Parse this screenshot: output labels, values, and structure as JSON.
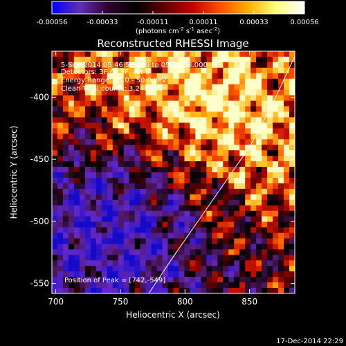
{
  "chart_data": {
    "type": "heatmap",
    "title": "Reconstructed RHESSI Image",
    "xlabel": "Heliocentric X (arcsec)",
    "ylabel": "Heliocentric Y (arcsec)",
    "xlim": [
      697,
      885
    ],
    "ylim": [
      -558,
      -363
    ],
    "x_ticks": [
      700,
      750,
      800,
      850
    ],
    "y_ticks": [
      -400,
      -450,
      -500,
      -550
    ],
    "colorbar": {
      "ticks": [
        "-0.00056",
        "-0.00033",
        "-0.00011",
        "0.00011",
        "0.00033",
        "0.00056"
      ],
      "units": "(photons cm",
      "units_exp1": "-2",
      "units_mid": " s",
      "units_exp2": "-1",
      "units_mid2": " asec",
      "units_exp3": "-2",
      "units_end": ")",
      "colors": [
        "#0000ff",
        "#6030b0",
        "#300030",
        "#000000",
        "#600000",
        "#c00000",
        "#ff5000",
        "#ffb000",
        "#ffff80",
        "#ffffff"
      ]
    },
    "annotations": {
      "time_range": "5-Sep-2014 05:46:58.000 to 05:52:58.000",
      "detectors": "Detectors: 3F 6F 9F, Att 0",
      "energy": "Energy Range: 25.0 - 50.0 keV",
      "method": "Clean     Total counts: 3.24E+03",
      "peak": "Position of Peak = [742,-549]"
    },
    "limb_points": [
      [
        772,
        -558
      ],
      [
        790,
        -530
      ],
      [
        810,
        -500
      ],
      [
        830,
        -470
      ],
      [
        850,
        -440
      ],
      [
        868,
        -405
      ],
      [
        885,
        -367
      ]
    ]
  },
  "footer": {
    "timestamp": "17-Dec-2014 22:29"
  }
}
